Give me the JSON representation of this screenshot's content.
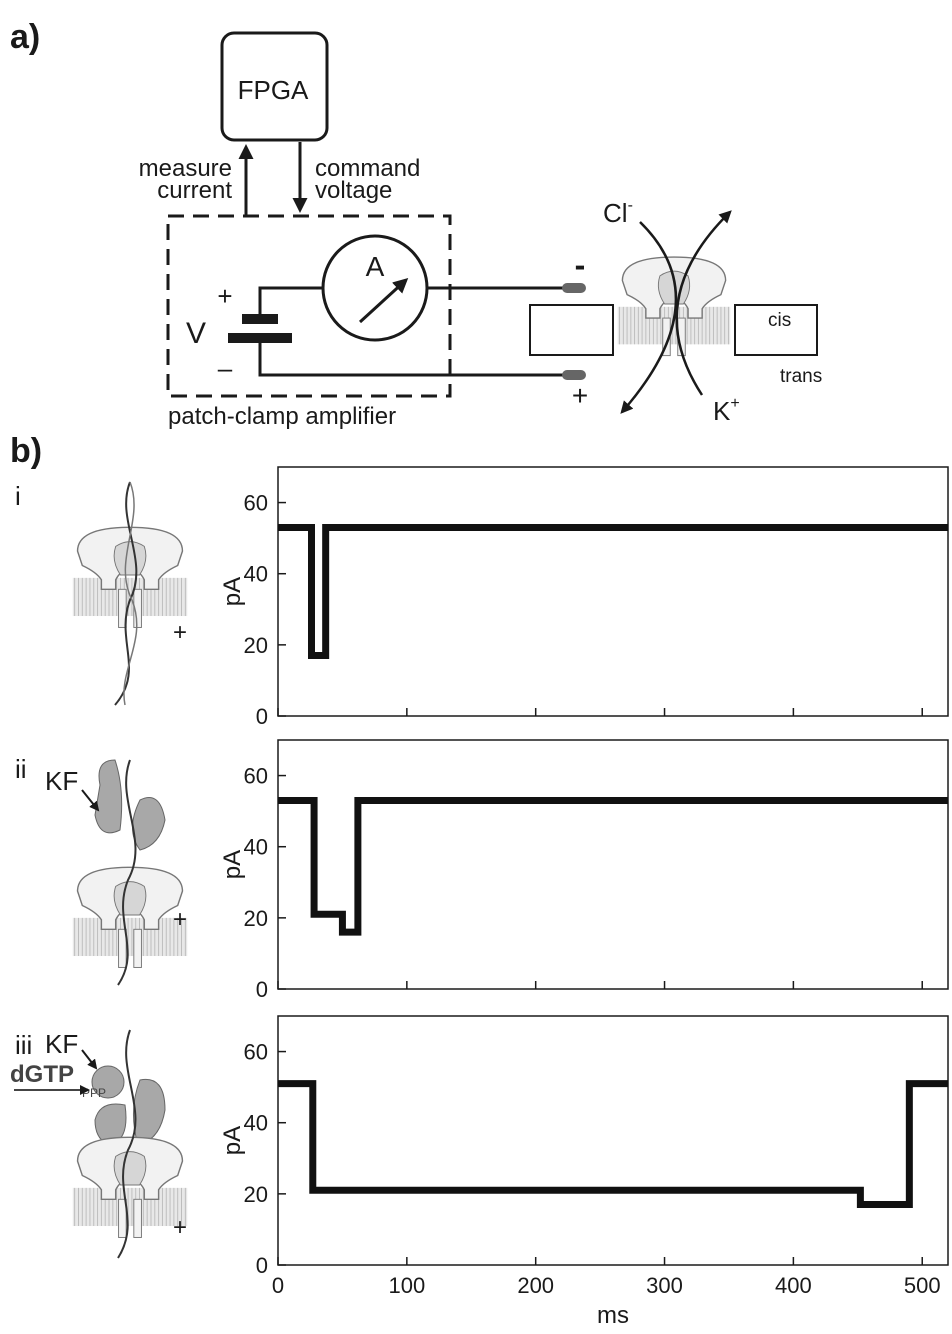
{
  "labels": {
    "panel_a": "a)",
    "fpga": "FPGA",
    "measure_current": [
      "measure",
      "current"
    ],
    "command_voltage": [
      "command",
      "voltage"
    ],
    "voltage_source": "V",
    "battery_plus": "+",
    "battery_minus": "–",
    "ammeter": "A",
    "amplifier": "patch-clamp amplifier",
    "electrode_minus": "-",
    "electrode_plus": "+",
    "chloride": "Cl",
    "chloride_charge": "-",
    "potassium": "K",
    "potassium_charge": "+",
    "cis": "cis",
    "trans": "trans",
    "panel_b": "b)",
    "kf_ii": "KF",
    "kf_iii": "KF",
    "dgtp": "dGTP",
    "ppp": "PPP",
    "plus_i": "+",
    "plus_ii": "+",
    "plus_iii": "+"
  },
  "chart_data": [
    {
      "type": "line",
      "label": "i",
      "ylabel": "pA",
      "color": "#111111",
      "x": [
        0,
        26,
        26,
        37,
        37,
        520
      ],
      "values": [
        53,
        53,
        17,
        17,
        53,
        53
      ],
      "xlim": [
        0,
        520
      ],
      "xticks": [
        0,
        100,
        200,
        300,
        400,
        500
      ],
      "xtick_labels": false,
      "ylim": [
        0,
        70
      ],
      "yticks": [
        0,
        20,
        40,
        60
      ]
    },
    {
      "type": "line",
      "label": "ii",
      "ylabel": "pA",
      "color": "#111111",
      "x": [
        0,
        28,
        28,
        50,
        50,
        62,
        62,
        520
      ],
      "values": [
        53,
        53,
        21,
        21,
        16,
        16,
        53,
        53
      ],
      "xlim": [
        0,
        520
      ],
      "xticks": [
        0,
        100,
        200,
        300,
        400,
        500
      ],
      "xtick_labels": false,
      "ylim": [
        0,
        70
      ],
      "yticks": [
        0,
        20,
        40,
        60
      ]
    },
    {
      "type": "line",
      "label": "iii",
      "ylabel": "pA",
      "xlabel": "ms",
      "color": "#111111",
      "x": [
        0,
        27,
        27,
        452,
        452,
        490,
        490,
        520
      ],
      "values": [
        51,
        51,
        21,
        21,
        17,
        17,
        51,
        51
      ],
      "xlim": [
        0,
        520
      ],
      "xticks": [
        0,
        100,
        200,
        300,
        400,
        500
      ],
      "xtick_labels": true,
      "ylim": [
        0,
        70
      ],
      "yticks": [
        0,
        20,
        40,
        60
      ]
    }
  ]
}
